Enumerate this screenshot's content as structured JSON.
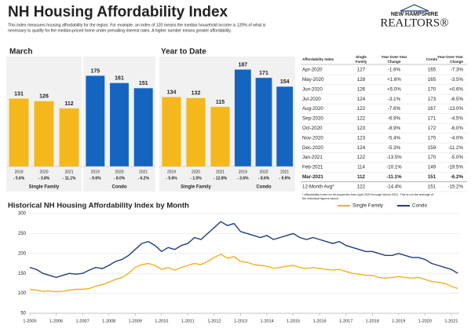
{
  "header": {
    "title": "NH Housing Affordability Index",
    "subtitle_lines": [
      "This index measures housing affordability for the region. For example, an index of 120 means the median household income is 120% of what is",
      "necessary to qualify for the median-priced home under prevailing interest rates. A higher number means greater affordability."
    ],
    "logo_top": "NEW HAMPSHIRE",
    "logo_bottom": "REALTORS®"
  },
  "sections": [
    "March",
    "Year to Date"
  ],
  "table": {
    "columns": [
      "Affordability Index",
      "Single Family",
      "Year-Over-Year Change",
      "Condo",
      "Year-Over-Year Change"
    ],
    "rows": [
      [
        "Apr-2020",
        "127",
        "-1.6%",
        "165",
        "-7.3%"
      ],
      [
        "May-2020",
        "128",
        "+1.6%",
        "165",
        "-3.5%"
      ],
      [
        "Jun-2020",
        "126",
        "+5.0%",
        "170",
        "+0.6%"
      ],
      [
        "Jul-2020",
        "124",
        "-3.1%",
        "173",
        "-6.5%"
      ],
      [
        "Aug-2020",
        "122",
        "-7.6%",
        "167",
        "-13.0%"
      ],
      [
        "Sep-2020",
        "122",
        "-6.9%",
        "171",
        "-4.5%"
      ],
      [
        "Oct-2020",
        "123",
        "-8.9%",
        "172",
        "-6.0%"
      ],
      [
        "Nov-2020",
        "123",
        "-5.4%",
        "170",
        "-4.0%"
      ],
      [
        "Dec-2020",
        "124",
        "-5.3%",
        "159",
        "-11.2%"
      ],
      [
        "Jan-2021",
        "122",
        "-13.5%",
        "170",
        "-5.0%"
      ],
      [
        "Feb-2021",
        "114",
        "-10.1%",
        "149",
        "-19.5%"
      ],
      [
        "Mar-2021",
        "112",
        "-11.1%",
        "151",
        "-6.2%"
      ],
      [
        "12-Month Avg*",
        "122",
        "-14.4%",
        "151",
        "-15.2%"
      ]
    ],
    "footnote_lines": [
      "* Affordability Index for all properties from April 2020 through March 2021. This is not the average of",
      "the individual figures above."
    ]
  },
  "chart_data": [
    {
      "type": "bar",
      "label": "Single Family",
      "categories": [
        "2019",
        "2020",
        "2021"
      ],
      "values": [
        131,
        126,
        112
      ],
      "change_labels": [
        "- 5.6%",
        "- 3.8%",
        "- 11.1%"
      ],
      "color": "#f5b81c",
      "ylim": [
        0,
        200
      ]
    },
    {
      "type": "bar",
      "label": "Condo",
      "categories": [
        "2019",
        "2020",
        "2021"
      ],
      "values": [
        175,
        161,
        151
      ],
      "change_labels": [
        "- 9.6%",
        "- 8.0%",
        "- 6.2%"
      ],
      "color": "#1565c0",
      "ylim": [
        0,
        200
      ]
    },
    {
      "type": "bar",
      "label": "Single Family",
      "categories": [
        "2019",
        "2020",
        "2021"
      ],
      "values": [
        134,
        132,
        115
      ],
      "change_labels": [
        "- 5.6%",
        "- 1.5%",
        "- 12.8%"
      ],
      "color": "#f5b81c",
      "ylim": [
        0,
        200
      ]
    },
    {
      "type": "bar",
      "label": "Condo",
      "categories": [
        "2019",
        "2020",
        "2021"
      ],
      "values": [
        187,
        171,
        154
      ],
      "change_labels": [
        "- 3.6%",
        "- 8.6%",
        "- 9.9%"
      ],
      "color": "#1565c0",
      "ylim": [
        0,
        200
      ]
    },
    {
      "type": "line",
      "title": "Historical NH Housing Affordability Index by Month",
      "x": [
        2005,
        2005.25,
        2005.5,
        2005.75,
        2006,
        2006.25,
        2006.5,
        2006.75,
        2007,
        2007.25,
        2007.5,
        2007.75,
        2008,
        2008.25,
        2008.5,
        2008.75,
        2009,
        2009.25,
        2009.5,
        2009.75,
        2010,
        2010.25,
        2010.5,
        2010.75,
        2011,
        2011.25,
        2011.5,
        2011.75,
        2012,
        2012.25,
        2012.5,
        2012.75,
        2013,
        2013.25,
        2013.5,
        2013.75,
        2014,
        2014.25,
        2014.5,
        2014.75,
        2015,
        2015.25,
        2015.5,
        2015.75,
        2016,
        2016.25,
        2016.5,
        2016.75,
        2017,
        2017.25,
        2017.5,
        2017.75,
        2018,
        2018.25,
        2018.5,
        2018.75,
        2019,
        2019.25,
        2019.5,
        2019.75,
        2020,
        2020.25,
        2020.5,
        2020.75,
        2021,
        2021.25
      ],
      "series": [
        {
          "name": "Single Family",
          "color": "#f2b01e",
          "values": [
            110,
            108,
            105,
            106,
            104,
            105,
            108,
            110,
            110,
            112,
            118,
            122,
            128,
            135,
            140,
            150,
            165,
            172,
            175,
            170,
            160,
            165,
            158,
            165,
            170,
            175,
            172,
            180,
            190,
            198,
            188,
            192,
            180,
            178,
            172,
            170,
            168,
            163,
            165,
            168,
            170,
            165,
            162,
            165,
            162,
            160,
            158,
            160,
            155,
            150,
            148,
            145,
            145,
            140,
            138,
            140,
            142,
            140,
            138,
            140,
            135,
            130,
            128,
            125,
            118,
            112
          ]
        },
        {
          "name": "Condo",
          "color": "#1c3f7a",
          "values": [
            165,
            160,
            150,
            145,
            140,
            145,
            150,
            148,
            150,
            158,
            165,
            162,
            170,
            180,
            185,
            195,
            210,
            225,
            230,
            220,
            205,
            215,
            210,
            220,
            225,
            240,
            235,
            250,
            265,
            280,
            270,
            275,
            255,
            250,
            245,
            240,
            245,
            235,
            240,
            245,
            250,
            240,
            235,
            240,
            235,
            230,
            225,
            230,
            220,
            215,
            210,
            205,
            205,
            200,
            195,
            195,
            200,
            195,
            190,
            190,
            185,
            175,
            170,
            165,
            160,
            150
          ]
        }
      ],
      "xlim": [
        2005,
        2021.3
      ],
      "xticks": [
        {
          "value": 2005,
          "label": "1-2005"
        },
        {
          "value": 2006,
          "label": "1-2006"
        },
        {
          "value": 2007,
          "label": "1-2007"
        },
        {
          "value": 2008,
          "label": "1-2008"
        },
        {
          "value": 2009,
          "label": "1-2009"
        },
        {
          "value": 2010,
          "label": "1-2010"
        },
        {
          "value": 2011,
          "label": "1-2011"
        },
        {
          "value": 2012,
          "label": "1-2012"
        },
        {
          "value": 2013,
          "label": "1-2013"
        },
        {
          "value": 2014,
          "label": "1-2014"
        },
        {
          "value": 2015,
          "label": "1-2015"
        },
        {
          "value": 2016,
          "label": "1-2016"
        },
        {
          "value": 2017,
          "label": "1-2017"
        },
        {
          "value": 2018,
          "label": "1-2018"
        },
        {
          "value": 2019,
          "label": "1-2019"
        },
        {
          "value": 2020,
          "label": "1-2020"
        },
        {
          "value": 2021,
          "label": "1-2021"
        }
      ],
      "ylim": [
        50,
        300
      ],
      "yticks": [
        50,
        100,
        150,
        200,
        250,
        300
      ],
      "grid": true
    }
  ]
}
